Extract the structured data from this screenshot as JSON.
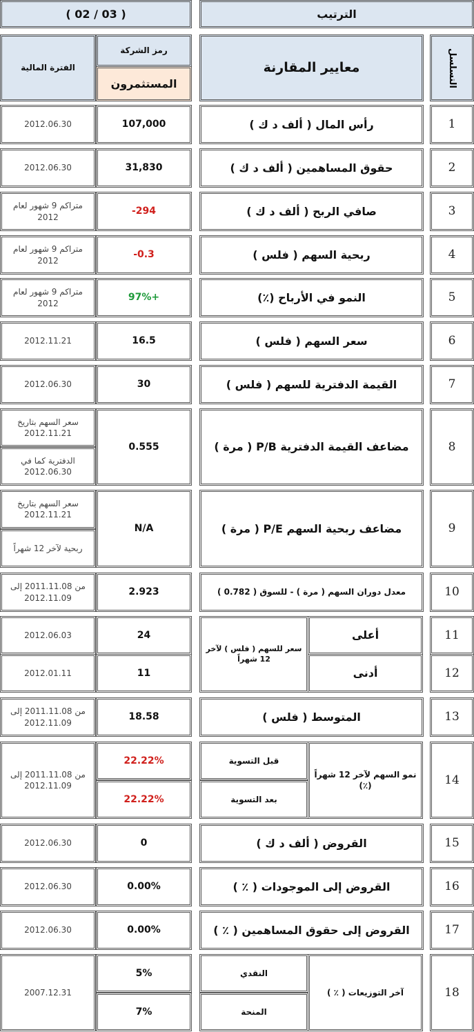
{
  "header": {
    "ranking_label": "الترتيب",
    "ranking_value": "( 03 / 02 )",
    "seq_label": "التسلسل",
    "criteria_label": "معايير المقارنة",
    "company_code_label": "رمز الشركة",
    "company_name": "المستثمرون",
    "period_label": "الفترة المالية"
  },
  "rows": [
    {
      "seq": "1",
      "criterion": "رأس المال ( ألف د ك )",
      "value": "107,000",
      "date": "2012.06.30"
    },
    {
      "seq": "2",
      "criterion": "حقوق المساهمين ( ألف د ك )",
      "value": "31,830",
      "date": "2012.06.30"
    },
    {
      "seq": "3",
      "criterion": "صافي الربح ( ألف د ك )",
      "value": "-294",
      "value_color": "red",
      "date": "متراكم 9 شهور لعام 2012"
    },
    {
      "seq": "4",
      "criterion": "ربحية السهم ( فلس )",
      "value": "-0.3",
      "value_color": "red",
      "date": "متراكم 9 شهور لعام 2012"
    },
    {
      "seq": "5",
      "criterion": "النمو في الأرباح (٪)",
      "value": "97%+",
      "value_color": "green",
      "date": "متراكم 9 شهور لعام 2012"
    },
    {
      "seq": "6",
      "criterion": "سعر السهم ( فلس )",
      "value": "16.5",
      "date": "2012.11.21"
    },
    {
      "seq": "7",
      "criterion": "القيمة الدفترية للسهم ( فلس )",
      "value": "30",
      "date": "2012.06.30"
    },
    {
      "seq": "8",
      "criterion": "مضاعف القيمة الدفترية P/B ( مرة )",
      "value": "0.555",
      "date_top": "سعر السهم بتاريخ 2012.11.21",
      "date_bottom": "الدفترية كما في 2012.06.30"
    },
    {
      "seq": "9",
      "criterion": "مضاعف ربحية السهم P/E ( مرة )",
      "value": "N/A",
      "date_top": "سعر السهم بتاريخ 2012.11.21",
      "date_bottom": "ربحية لآخر 12 شهراً"
    },
    {
      "seq": "10",
      "criterion": "معدل دوران السهم ( مرة ) - للسوق ( 0.782 )",
      "value": "2.923",
      "date": "من 2011.11.08 إلى 2012.11.09"
    },
    {
      "seq": "11",
      "group": "سعر للسهم ( فلس ) لآخر 12 شهراً",
      "criterion": "أعلى",
      "value": "24",
      "date": "2012.06.03"
    },
    {
      "seq": "12",
      "criterion": "أدنى",
      "value": "11",
      "date": "2012.01.11"
    },
    {
      "seq": "13",
      "criterion": "المتوسط ( فلس )",
      "value": "18.58",
      "date": "من 2011.11.08 إلى 2012.11.09"
    },
    {
      "seq": "14",
      "group": "نمو السهم لآخر 12 شهراً (٪)",
      "sub_top": "قبل التسوية",
      "value_top": "22.22%",
      "sub_bottom": "بعد التسوية",
      "value_bottom": "22.22%",
      "value_color": "red",
      "date": "من 2011.11.08 إلى 2012.11.09"
    },
    {
      "seq": "15",
      "criterion": "القروض ( ألف د ك )",
      "value": "0",
      "date": "2012.06.30"
    },
    {
      "seq": "16",
      "criterion": "القروض إلى الموجودات ( ٪ )",
      "value": "0.00%",
      "date": "2012.06.30"
    },
    {
      "seq": "17",
      "criterion": "القروض إلى حقوق المساهمين ( ٪ )",
      "value": "0.00%",
      "date": "2012.06.30"
    },
    {
      "seq": "18",
      "group": "آخر التوزيعات ( ٪ )",
      "sub_top": "النقدي",
      "value_top": "5%",
      "sub_bottom": "المنحة",
      "value_bottom": "7%",
      "date": "2007.12.31"
    }
  ]
}
